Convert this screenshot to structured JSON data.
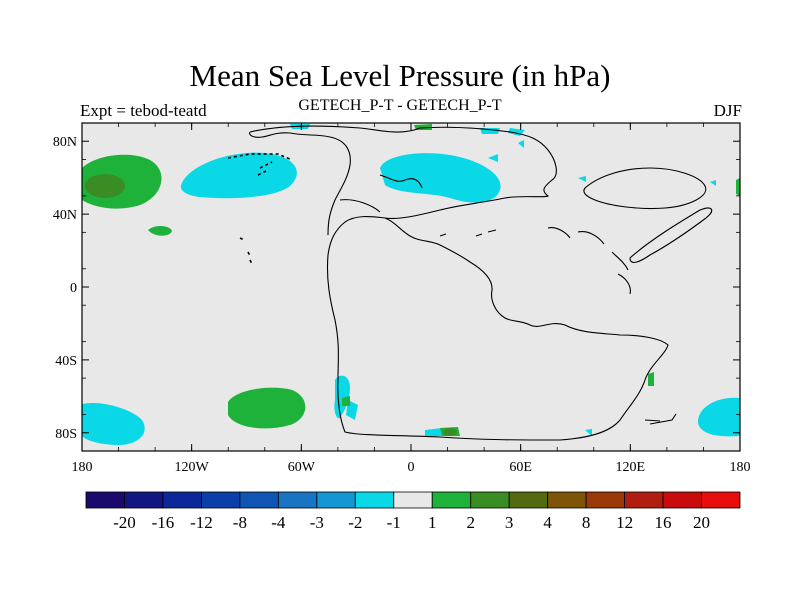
{
  "title": "Mean Sea Level Pressure (in hPa)",
  "left_label": "Expt = tebod-teatd",
  "center_label": "GETECH_P-T - GETECH_P-T",
  "right_label": "DJF",
  "lon_ticks": [
    "180",
    "120W",
    "60W",
    "0",
    "60E",
    "120E",
    "180"
  ],
  "lat_ticks": [
    "80N",
    "40N",
    "0",
    "40S",
    "80S"
  ],
  "colorbar": {
    "colors": [
      "#1a0a6e",
      "#121680",
      "#0c2898",
      "#0a3ea8",
      "#0e55b4",
      "#1a74c4",
      "#1496d2",
      "#0ad8e6",
      "#e8e8e8",
      "#1eb23a",
      "#3a8c24",
      "#546a10",
      "#7e5508",
      "#9a3a08",
      "#b01e10",
      "#c80c0c",
      "#e80e0e"
    ],
    "labels": [
      "-20",
      "-16",
      "-12",
      "-8",
      "-4",
      "-3",
      "-2",
      "-1",
      "1",
      "2",
      "3",
      "4",
      "8",
      "12",
      "16",
      "20"
    ]
  },
  "colors": {
    "land_bg": "#e8e8e8",
    "neg_1": "#0ad8e6",
    "pos_2": "#1eb23a",
    "pos_3": "#3a8c24"
  }
}
